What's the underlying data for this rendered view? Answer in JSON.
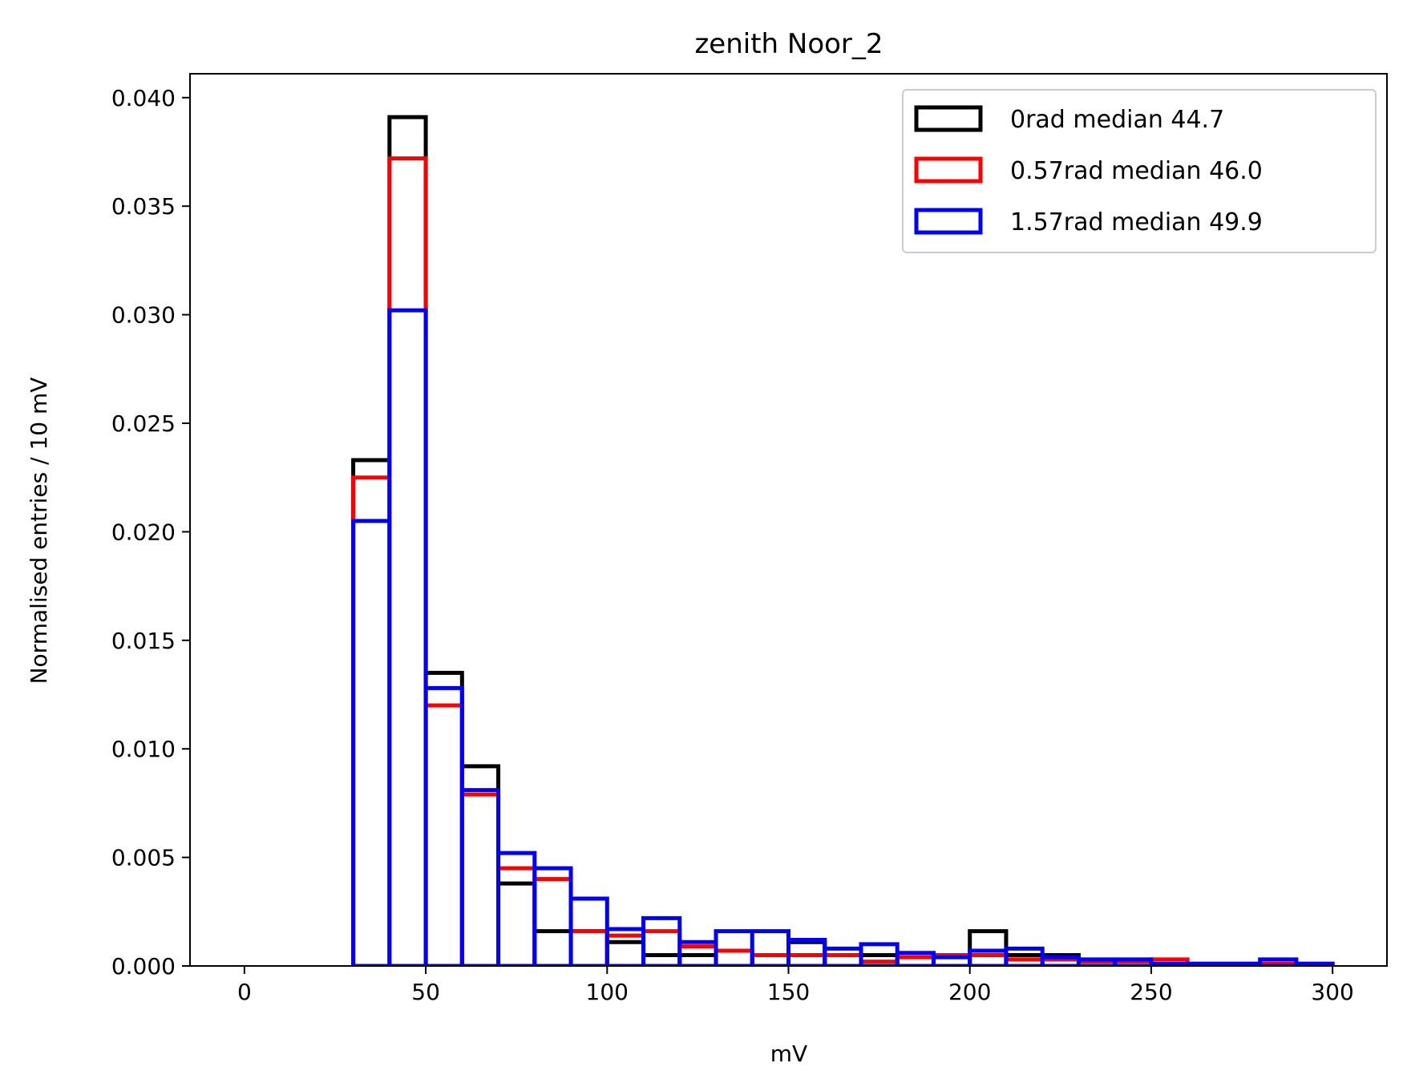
{
  "chart_data": {
    "type": "histogram",
    "title": "zenith Noor_2",
    "xlabel": "mV",
    "ylabel": "Normalised entries / 10 mV",
    "xlim": [
      -15,
      315
    ],
    "ylim": [
      0,
      0.0411
    ],
    "xticks": [
      "0",
      "50",
      "100",
      "150",
      "200",
      "250",
      "300"
    ],
    "yticks": [
      "0.000",
      "0.005",
      "0.010",
      "0.015",
      "0.020",
      "0.025",
      "0.030",
      "0.035",
      "0.040"
    ],
    "grid": false,
    "legend_position": "top-right",
    "bin_edges": [
      0,
      10,
      20,
      30,
      40,
      50,
      60,
      70,
      80,
      90,
      100,
      110,
      120,
      130,
      140,
      150,
      160,
      170,
      180,
      190,
      200,
      210,
      220,
      230,
      240,
      250,
      260,
      270,
      280,
      290,
      300
    ],
    "series": [
      {
        "name": "0rad median 44.7",
        "color": "#000000",
        "values": [
          0,
          0,
          0,
          0.0233,
          0.0391,
          0.0135,
          0.0092,
          0.0038,
          0.0016,
          0.0016,
          0.0011,
          0.0005,
          0.0005,
          0.0,
          0.0005,
          0.0011,
          0.0005,
          0.0005,
          0.0,
          0.0,
          0.0016,
          0.0005,
          0.0005,
          0.0,
          0.0,
          0.0,
          0.0,
          0.0,
          0.0,
          0.0
        ]
      },
      {
        "name": "0.57rad median 46.0",
        "color": "#ff0000",
        "values": [
          0,
          0,
          0,
          0.0225,
          0.0372,
          0.012,
          0.0079,
          0.0045,
          0.004,
          0.0016,
          0.0014,
          0.0016,
          0.0009,
          0.0007,
          0.0005,
          0.0005,
          0.0005,
          0.0002,
          0.0004,
          0.0005,
          0.0005,
          0.0003,
          0.0003,
          0.0002,
          0.0002,
          0.0003,
          0.0001,
          0.0001,
          0.0001,
          0.0001
        ]
      },
      {
        "name": "1.57rad median 49.9",
        "color": "#0000ff",
        "values": [
          0,
          0,
          0,
          0.0205,
          0.0302,
          0.0128,
          0.0081,
          0.0052,
          0.0045,
          0.0031,
          0.0017,
          0.0022,
          0.0011,
          0.0016,
          0.0016,
          0.0012,
          0.0008,
          0.001,
          0.0006,
          0.0004,
          0.0007,
          0.0008,
          0.0004,
          0.0003,
          0.0003,
          0.0001,
          0.0001,
          0.0001,
          0.0003,
          0.0001
        ]
      }
    ]
  }
}
